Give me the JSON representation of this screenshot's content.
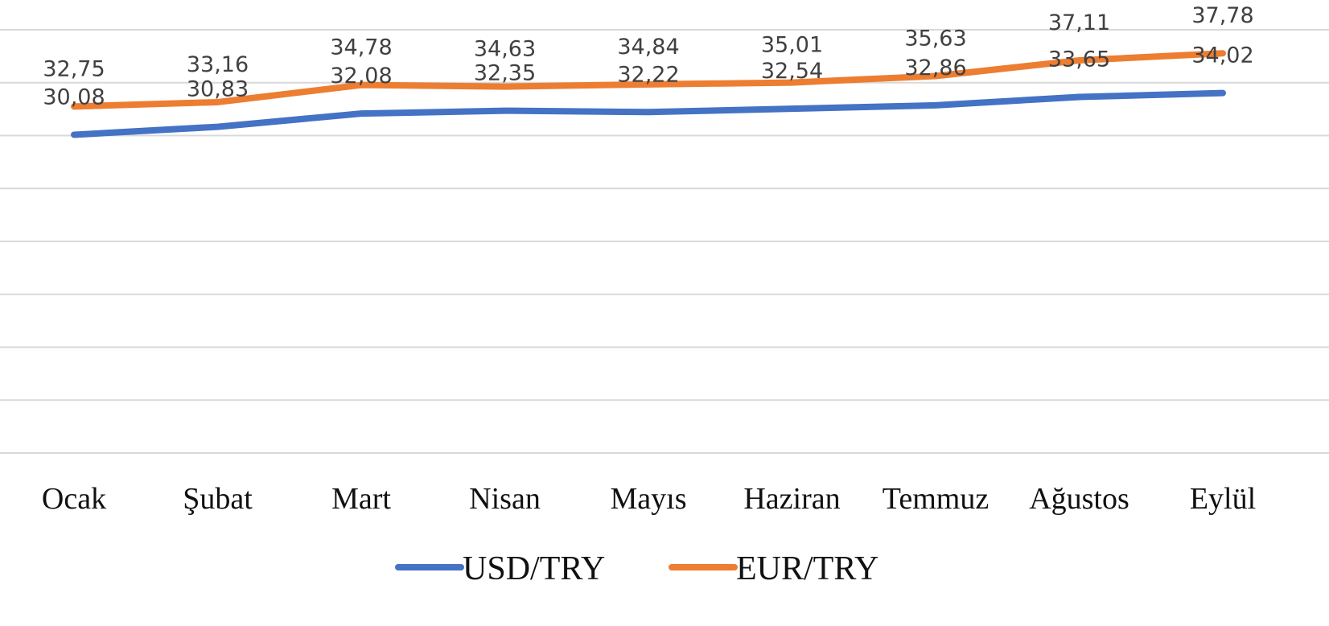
{
  "chart_data": {
    "type": "line",
    "categories": [
      "Ocak",
      "Şubat",
      "Mart",
      "Nisan",
      "Mayıs",
      "Haziran",
      "Temmuz",
      "Ağustos",
      "Eylül"
    ],
    "series": [
      {
        "name": "USD/TRY",
        "color": "#4472c4",
        "values": [
          30.08,
          30.83,
          32.08,
          32.35,
          32.22,
          32.54,
          32.86,
          33.65,
          34.02
        ],
        "value_labels": [
          "30,08",
          "30,83",
          "32,08",
          "32,35",
          "32,22",
          "32,54",
          "32,86",
          "33,65",
          "34,02"
        ]
      },
      {
        "name": "EUR/TRY",
        "color": "#ed7d31",
        "values": [
          32.75,
          33.16,
          34.78,
          34.63,
          34.84,
          35.01,
          35.63,
          37.11,
          37.78
        ],
        "value_labels": [
          "32,75",
          "33,16",
          "34,78",
          "34,63",
          "34,84",
          "35,01",
          "35,63",
          "37,11",
          "37,78"
        ]
      }
    ],
    "ylim": [
      0,
      40
    ],
    "yticks": [
      0,
      5,
      10,
      15,
      20,
      25,
      30,
      35,
      40
    ],
    "grid": true,
    "legend": "bottom"
  }
}
